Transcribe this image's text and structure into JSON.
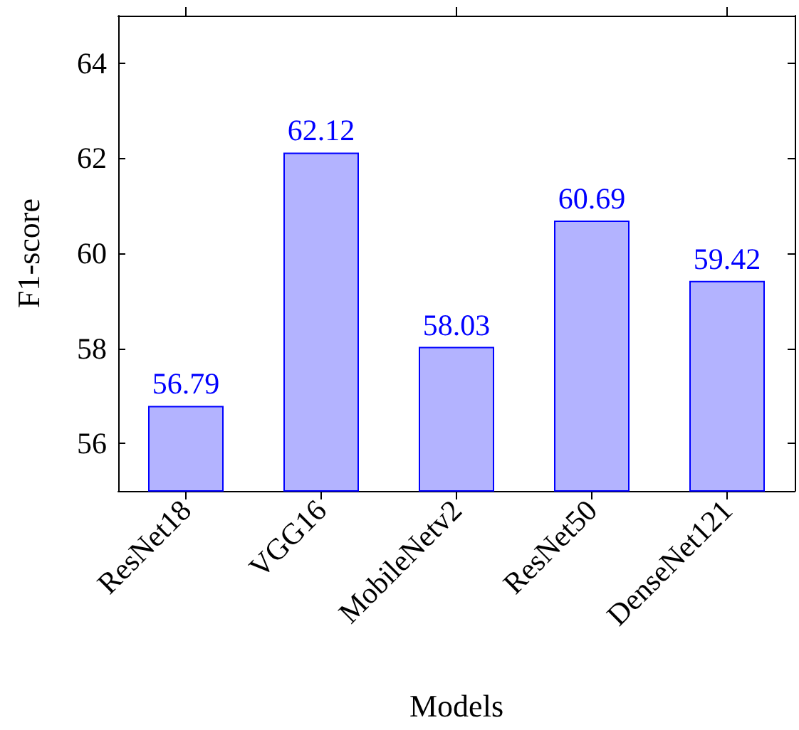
{
  "chart_data": {
    "type": "bar",
    "xlabel": "Models",
    "ylabel": "F1-score",
    "categories": [
      "ResNet18",
      "VGG16",
      "MobileNetv2",
      "ResNet50",
      "DenseNet121"
    ],
    "values": [
      56.79,
      62.12,
      58.03,
      60.69,
      59.42
    ],
    "color": "#b3b3ff",
    "ylim": [
      55,
      65
    ],
    "yticks": [
      56,
      58,
      60,
      62,
      64
    ],
    "data_labels": true,
    "grid": false
  }
}
